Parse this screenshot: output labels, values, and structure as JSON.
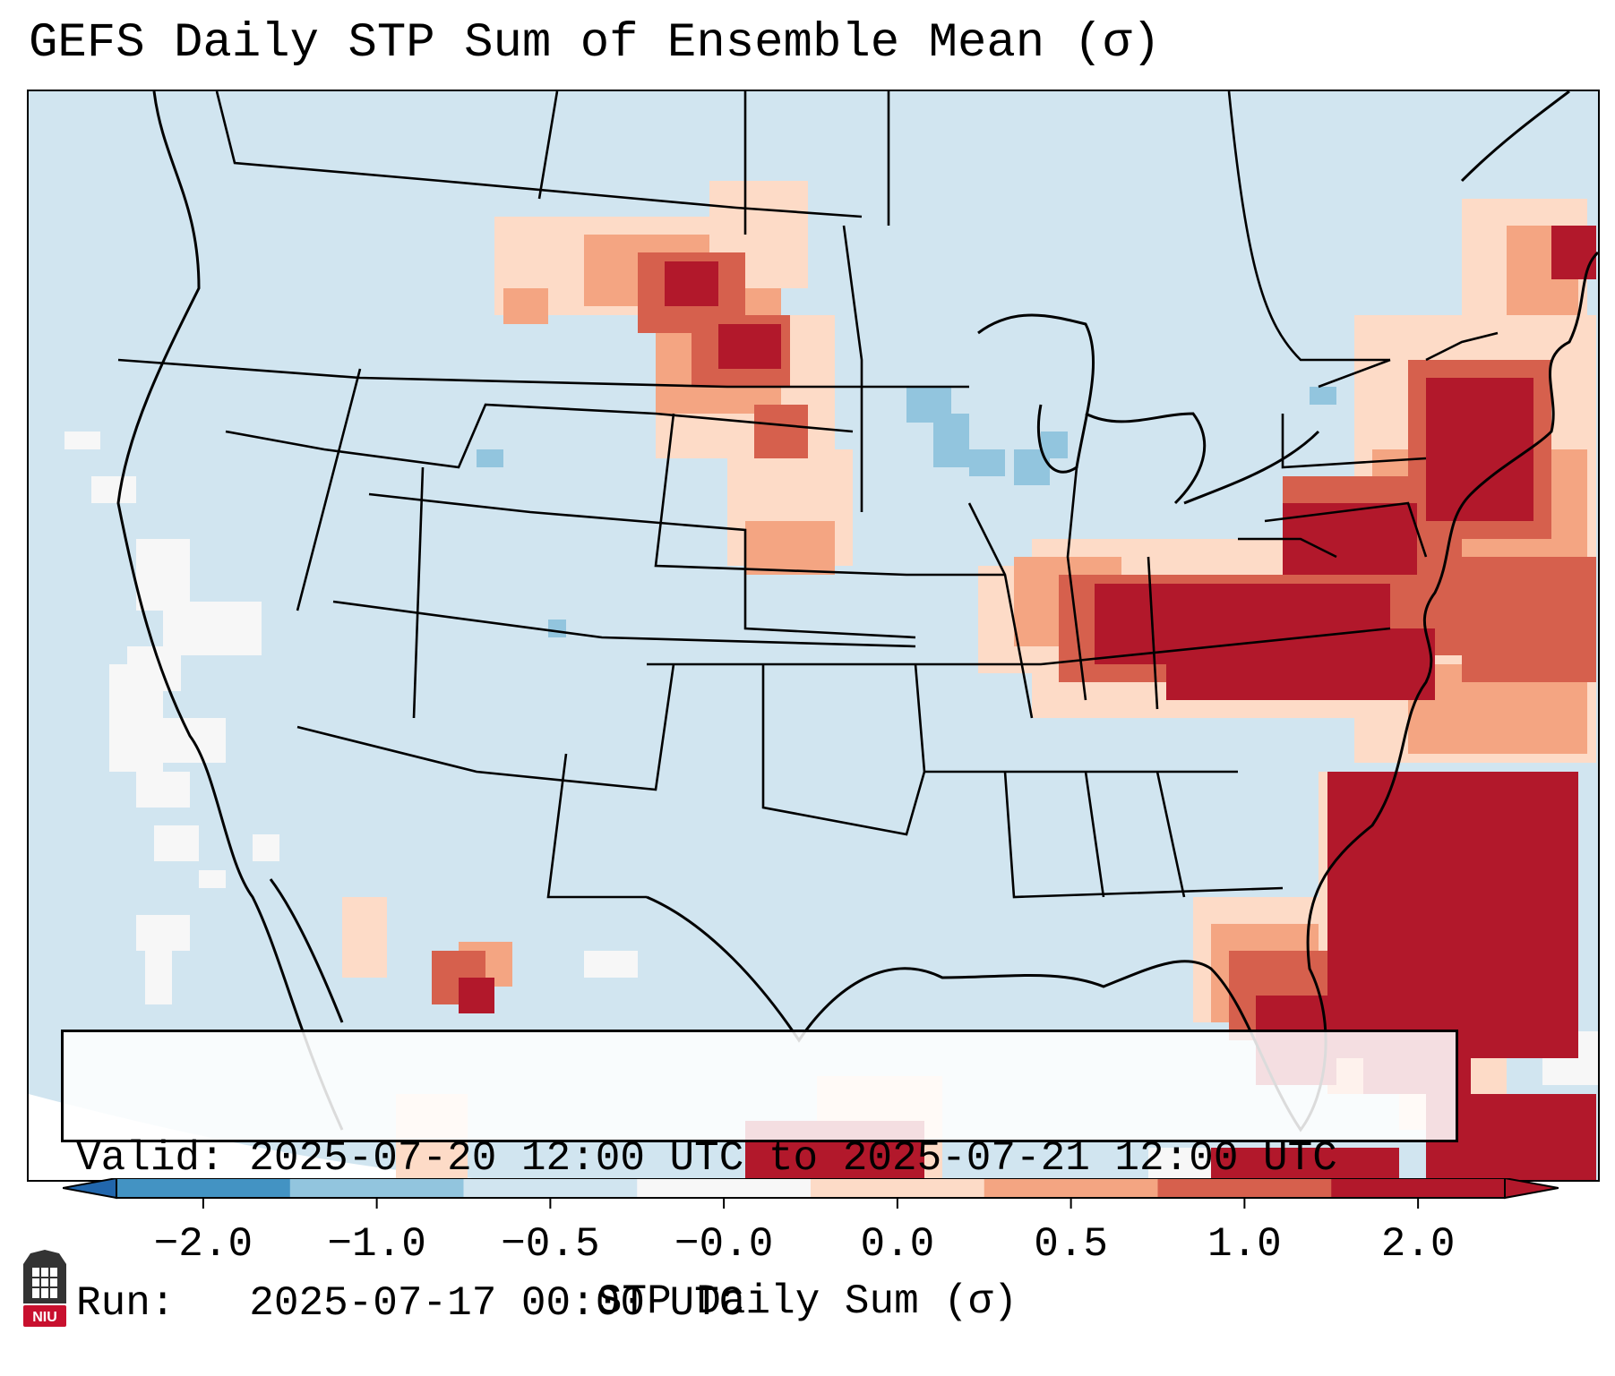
{
  "title": "GEFS Daily STP Sum of Ensemble Mean (σ)",
  "info_box": {
    "valid_label": "Valid:",
    "valid_value": "2025-07-20 12:00 UTC to 2025-07-21 12:00 UTC",
    "run_label": "Run:",
    "run_value": "2025-07-17 00:00 UTC"
  },
  "colorbar": {
    "label": "STP Daily Sum (σ)",
    "ticks": [
      "−2.0",
      "−1.0",
      "−0.5",
      "−0.0",
      "0.0",
      "0.5",
      "1.0",
      "2.0"
    ],
    "bin_colors": [
      "#4393c3",
      "#92c5de",
      "#d1e5f0",
      "#f7f7f7",
      "#fddbc7",
      "#f4a582",
      "#d6604d",
      "#b2182b"
    ],
    "extend_low_color": "#2166ac",
    "extend_high_color": "#b2182b"
  },
  "map": {
    "background_value_color": "#d1e5f0",
    "ocean_outline_color": "#ffffff",
    "regions": [
      "Northern Plains (Dakotas): 0.5 to 2.0 σ",
      "Ohio Valley / Mid-Atlantic: 1.0 to >2.0 σ",
      "Northeast / New England: 0.5 to >2.0 σ",
      "Western Atlantic off Southeast coast: >2.0 σ",
      "Florida peninsula: 1.0 to >2.0 σ",
      "Upper Midwest (Wisconsin): −1.0 to −0.5 σ"
    ]
  },
  "logo": {
    "text": "NIU",
    "color": "#c8102e"
  }
}
